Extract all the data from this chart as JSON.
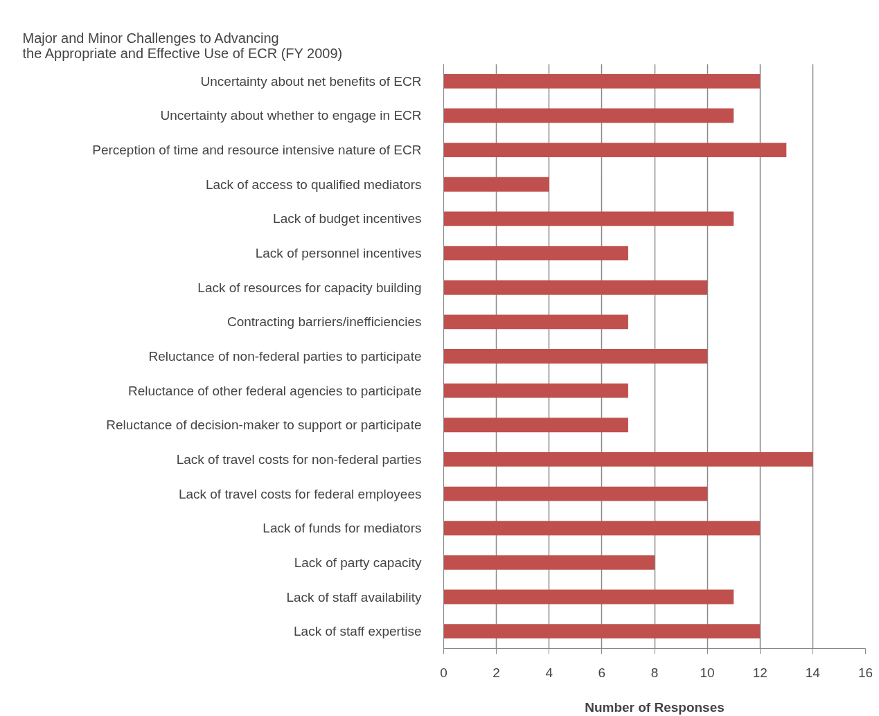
{
  "chart_data": {
    "type": "bar",
    "orientation": "horizontal",
    "title": "Major and Minor Challenges to Advancing\nthe Appropriate and Effective Use of ECR (FY 2009)",
    "xlabel": "Number of Responses",
    "categories": [
      "Uncertainty about net benefits of ECR",
      "Uncertainty about whether to engage in ECR",
      "Perception of time and resource intensive nature of ECR",
      "Lack of access to qualified mediators",
      "Lack of budget incentives",
      "Lack of personnel incentives",
      "Lack of resources for capacity building",
      "Contracting barriers/inefficiencies",
      "Reluctance of non-federal parties to participate",
      "Reluctance of other federal agencies to participate",
      "Reluctance of decision-maker to support or participate",
      "Lack of travel costs for non-federal parties",
      "Lack of travel costs for federal employees",
      "Lack of funds for mediators",
      "Lack of party capacity",
      "Lack of staff availability",
      "Lack of staff expertise"
    ],
    "values": [
      12,
      11,
      13,
      4,
      11,
      7,
      10,
      7,
      10,
      7,
      7,
      14,
      10,
      12,
      8,
      11,
      12
    ],
    "color": "#c0504d",
    "xlim": [
      0,
      16
    ],
    "xticks": [
      0,
      2,
      4,
      6,
      8,
      10,
      12,
      14,
      16
    ],
    "grid": "x"
  }
}
